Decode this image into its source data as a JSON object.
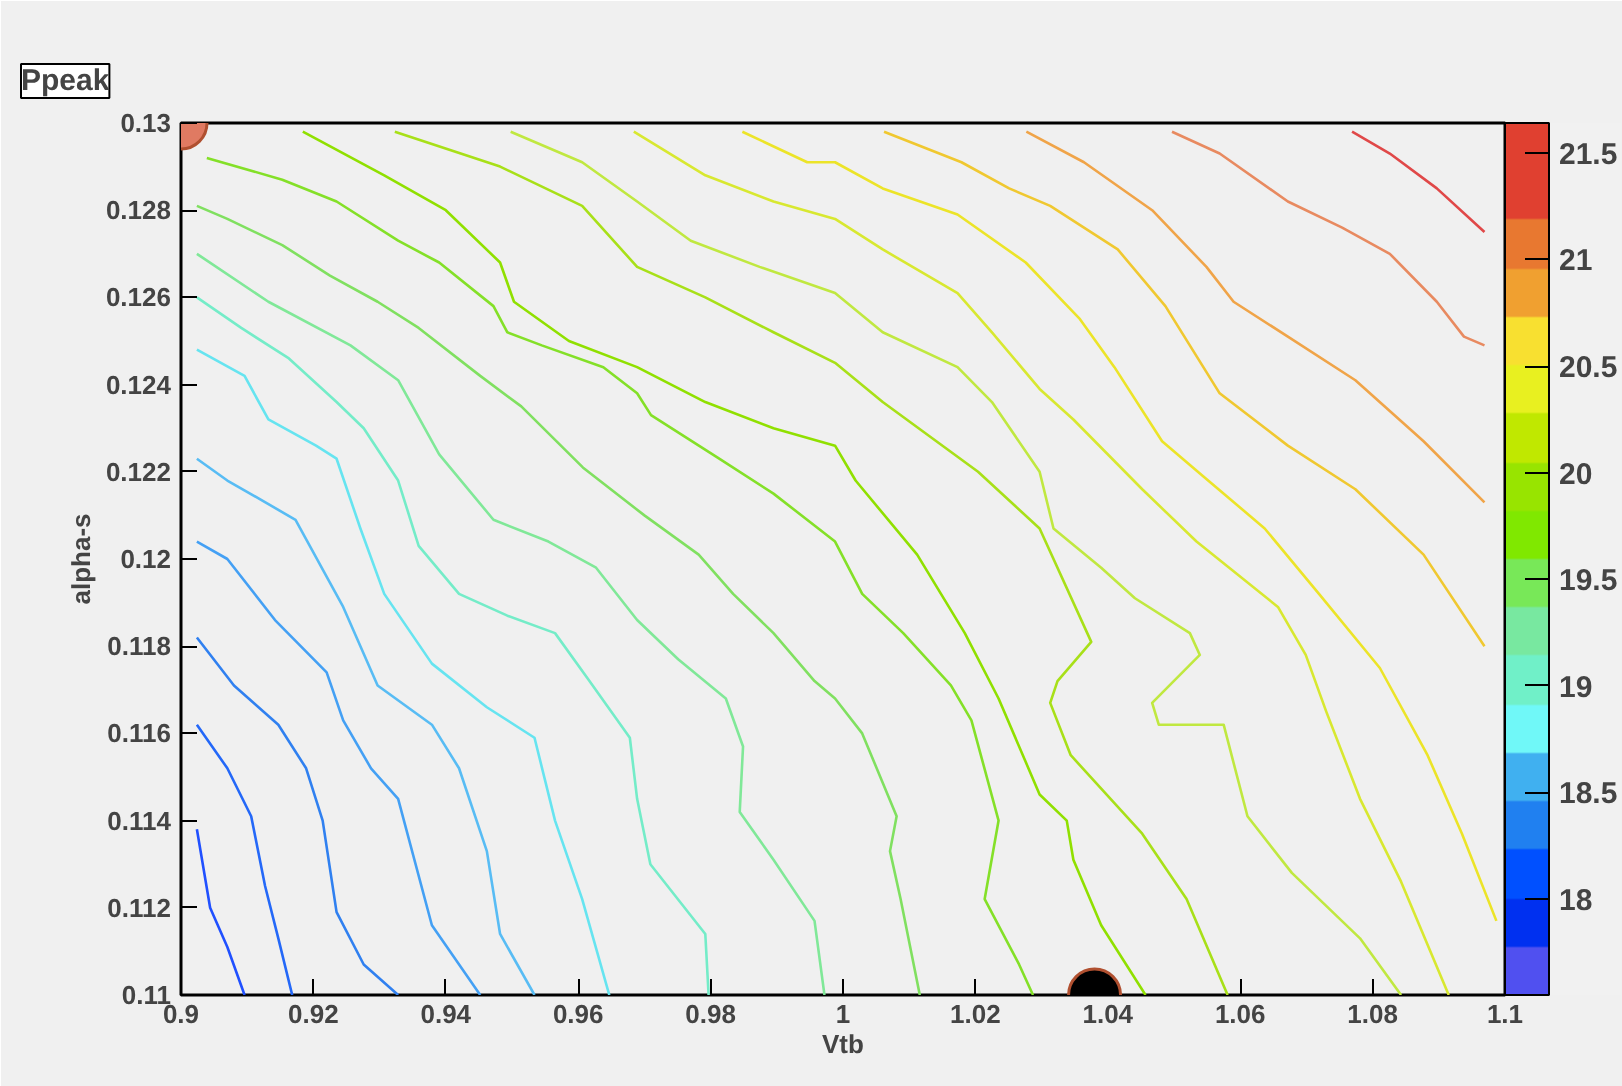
{
  "chart_data": {
    "type": "line",
    "title": "Ppeak",
    "xlabel": "Vtb",
    "ylabel": "alpha-s",
    "xlim": [
      0.9,
      1.1
    ],
    "ylim": [
      0.11,
      0.13
    ],
    "xticks": [
      0.9,
      0.92,
      0.94,
      0.96,
      0.98,
      1,
      1.02,
      1.04,
      1.06,
      1.08,
      1.1
    ],
    "yticks": [
      0.11,
      0.112,
      0.114,
      0.116,
      0.118,
      0.12,
      0.122,
      0.124,
      0.126,
      0.128,
      0.13
    ],
    "clim": [
      17.55,
      21.64
    ],
    "cticks": [
      18,
      18.5,
      19,
      19.5,
      20,
      20.5,
      21,
      21.5
    ],
    "grid": false,
    "series": [
      {
        "color": "#2050ff",
        "x": [
          0.9024,
          0.9044,
          0.907,
          0.9096
        ],
        "values": [
          0.1138,
          0.112,
          0.1111,
          0.11
        ]
      },
      {
        "color": "#2468f8",
        "x": [
          0.9024,
          0.907,
          0.9106,
          0.9127,
          0.9147,
          0.9168
        ],
        "values": [
          0.1162,
          0.1152,
          0.1141,
          0.1125,
          0.1113,
          0.11
        ]
      },
      {
        "color": "#3080f0",
        "x": [
          0.9024,
          0.908,
          0.9147,
          0.9189,
          0.9214,
          0.9235,
          0.9276,
          0.9328
        ],
        "values": [
          0.1182,
          0.1171,
          0.1162,
          0.1152,
          0.114,
          0.1119,
          0.1107,
          0.11
        ]
      },
      {
        "color": "#44a0f4",
        "x": [
          0.9024,
          0.907,
          0.9142,
          0.922,
          0.9245,
          0.9287,
          0.9328,
          0.9379,
          0.9452
        ],
        "values": [
          0.1204,
          0.12,
          0.1186,
          0.1174,
          0.1163,
          0.1152,
          0.1145,
          0.1116,
          0.11
        ]
      },
      {
        "color": "#58bcf4",
        "x": [
          0.9024,
          0.907,
          0.9173,
          0.9245,
          0.9297,
          0.9379,
          0.942,
          0.9462,
          0.9482,
          0.9534
        ],
        "values": [
          0.1223,
          0.1218,
          0.1209,
          0.1189,
          0.1171,
          0.1162,
          0.1152,
          0.1133,
          0.1114,
          0.11
        ]
      },
      {
        "color": "#66e4f0",
        "x": [
          0.9024,
          0.9096,
          0.9132,
          0.9204,
          0.9235,
          0.9271,
          0.9307,
          0.9379,
          0.9462,
          0.9534,
          0.9565,
          0.9606,
          0.9647
        ],
        "values": [
          0.1248,
          0.1242,
          0.1232,
          0.1226,
          0.1223,
          0.1207,
          0.1192,
          0.1176,
          0.1166,
          0.1159,
          0.114,
          0.1122,
          0.11
        ]
      },
      {
        "color": "#74ecc8",
        "x": [
          0.9024,
          0.9091,
          0.9163,
          0.9235,
          0.9276,
          0.9328,
          0.9359,
          0.942,
          0.9493,
          0.9565,
          0.9617,
          0.9678,
          0.9689,
          0.9709,
          0.9792,
          0.9797
        ],
        "values": [
          0.126,
          0.1253,
          0.1246,
          0.1236,
          0.123,
          0.1218,
          0.1203,
          0.1192,
          0.1187,
          0.1183,
          0.1172,
          0.1159,
          0.1145,
          0.113,
          0.1114,
          0.11
        ]
      },
      {
        "color": "#80e898",
        "x": [
          0.9024,
          0.9132,
          0.9256,
          0.9328,
          0.939,
          0.9472,
          0.9555,
          0.9627,
          0.9689,
          0.9751,
          0.9823,
          0.9849,
          0.9844,
          0.9895,
          0.9957,
          0.9972
        ],
        "values": [
          0.127,
          0.1259,
          0.1249,
          0.1241,
          0.1224,
          0.1209,
          0.1204,
          0.1198,
          0.1186,
          0.1177,
          0.1168,
          0.1157,
          0.1142,
          0.1131,
          0.1117,
          0.11
        ]
      },
      {
        "color": "#80e060",
        "x": [
          0.9024,
          0.907,
          0.9153,
          0.9225,
          0.9297,
          0.9359,
          0.9452,
          0.9514,
          0.9607,
          0.97,
          0.9782,
          0.9834,
          0.9895,
          0.9957,
          0.9988,
          1.0029,
          1.0081,
          1.0071,
          1.0087,
          1.0116
        ],
        "values": [
          0.1281,
          0.1278,
          0.1272,
          0.1265,
          0.1259,
          0.1253,
          0.1242,
          0.1235,
          0.1221,
          0.121,
          0.1201,
          0.1192,
          0.1183,
          0.1172,
          0.1168,
          0.116,
          0.1141,
          0.1133,
          0.1122,
          0.11
        ]
      },
      {
        "color": "#84e028",
        "x": [
          0.9039,
          0.9153,
          0.9235,
          0.9328,
          0.939,
          0.9472,
          0.9493,
          0.9545,
          0.9638,
          0.9689,
          0.971,
          0.9813,
          0.9895,
          0.9988,
          1.0029,
          1.0091,
          1.0163,
          1.0194,
          1.0235,
          1.0214,
          1.0266,
          1.0287
        ],
        "values": [
          0.1292,
          0.1287,
          0.1282,
          0.1273,
          0.1268,
          0.1258,
          0.1252,
          0.1249,
          0.1244,
          0.1238,
          0.1233,
          0.1223,
          0.1215,
          0.1204,
          0.1192,
          0.1183,
          0.1171,
          0.1163,
          0.114,
          0.1122,
          0.1107,
          0.11
        ]
      },
      {
        "color": "#90e000",
        "x": [
          0.9184,
          0.9307,
          0.94,
          0.9482,
          0.9503,
          0.9586,
          0.9689,
          0.9792,
          0.9895,
          0.9988,
          1.0019,
          1.0112,
          1.0184,
          1.0235,
          1.0297,
          1.0338,
          1.0348,
          1.039,
          1.0457
        ],
        "values": [
          0.1298,
          0.1288,
          0.128,
          0.1268,
          0.1259,
          0.125,
          0.1244,
          0.1236,
          0.123,
          0.1226,
          0.1218,
          0.1201,
          0.1183,
          0.1168,
          0.1146,
          0.114,
          0.1131,
          0.1116,
          0.11
        ]
      },
      {
        "color": "#a8e018",
        "x": [
          0.9323,
          0.9482,
          0.9606,
          0.9689,
          0.9792,
          0.9895,
          0.9988,
          1.006,
          1.0204,
          1.0297,
          1.0375,
          1.0324,
          1.0313,
          1.0344,
          1.0452,
          1.0519,
          1.0581
        ],
        "values": [
          0.1298,
          0.129,
          0.1281,
          0.1267,
          0.126,
          0.1252,
          0.1245,
          0.1236,
          0.122,
          0.1207,
          0.1181,
          0.1172,
          0.1167,
          0.1155,
          0.1137,
          0.1122,
          0.11
        ]
      },
      {
        "color": "#c0e840",
        "x": [
          0.9498,
          0.9606,
          0.9689,
          0.977,
          0.9874,
          0.9988,
          1.006,
          1.0173,
          1.0225,
          1.0297,
          1.0318,
          1.039,
          1.0441,
          1.0524,
          1.0539,
          1.0467,
          1.0477,
          1.0575,
          1.0611,
          1.0678,
          1.0781,
          1.0843
        ],
        "values": [
          0.1298,
          0.1291,
          0.1282,
          0.1273,
          0.1267,
          0.1261,
          0.1252,
          0.1244,
          0.1236,
          0.122,
          0.1207,
          0.1198,
          0.1191,
          0.1183,
          0.1178,
          0.1167,
          0.1162,
          0.1162,
          0.1141,
          0.1128,
          0.1113,
          0.11
        ]
      },
      {
        "color": "#d8e830",
        "x": [
          0.9684,
          0.9792,
          0.9895,
          0.9988,
          1.006,
          1.0173,
          1.0225,
          1.0297,
          1.0348,
          1.0452,
          1.0534,
          1.0657,
          1.0699,
          1.073,
          1.0781,
          1.0843,
          1.0915
        ],
        "values": [
          0.1298,
          0.1288,
          0.1282,
          0.1278,
          0.1271,
          0.1261,
          0.1252,
          0.1239,
          0.1232,
          0.1216,
          0.1204,
          0.1189,
          0.1178,
          0.1165,
          0.1145,
          0.1126,
          0.11
        ]
      },
      {
        "color": "#ece428",
        "x": [
          0.9848,
          0.9946,
          0.9988,
          1.006,
          1.0173,
          1.0276,
          1.0358,
          1.041,
          1.0482,
          1.0544,
          1.0637,
          1.0719,
          1.0811,
          1.0883,
          1.0935,
          1.0987
        ],
        "values": [
          0.1298,
          0.1291,
          0.1291,
          0.1285,
          0.1279,
          0.1268,
          0.1255,
          0.1244,
          0.1227,
          0.1219,
          0.1207,
          0.1192,
          0.1175,
          0.1155,
          0.1137,
          0.1117
        ]
      },
      {
        "color": "#f0c830",
        "x": [
          1.0062,
          1.0179,
          1.0251,
          1.0313,
          1.0415,
          1.0487,
          1.0569,
          1.0672,
          1.0774,
          1.0877,
          1.0969
        ],
        "values": [
          0.1298,
          0.1291,
          0.1285,
          0.1281,
          0.1271,
          0.1258,
          0.1238,
          0.1226,
          0.1216,
          0.1201,
          0.118
        ]
      },
      {
        "color": "#f0a448",
        "x": [
          1.0277,
          1.0364,
          1.0467,
          1.0549,
          1.059,
          1.0672,
          1.0774,
          1.0877,
          1.0969
        ],
        "values": [
          0.1298,
          0.1291,
          0.128,
          0.1267,
          0.1259,
          0.1251,
          0.1241,
          0.1227,
          0.1213
        ]
      },
      {
        "color": "#e88a60",
        "x": [
          1.0497,
          1.0569,
          1.0672,
          1.0754,
          1.0826,
          1.0897,
          1.0938,
          1.0969
        ],
        "values": [
          0.1298,
          0.1293,
          0.1282,
          0.1276,
          0.127,
          0.1259,
          0.1251,
          0.1249
        ]
      },
      {
        "color": "#e04848",
        "x": [
          1.0769,
          1.0826,
          1.0897,
          1.0969
        ],
        "values": [
          0.1298,
          0.1293,
          0.1285,
          0.1275
        ]
      },
      {
        "type": "scatter",
        "x": [
          0.9,
          1.038
        ],
        "values": [
          0.13,
          0.11
        ],
        "colors": [
          "#e07a62",
          "#000000"
        ],
        "marker": "circle"
      }
    ]
  }
}
